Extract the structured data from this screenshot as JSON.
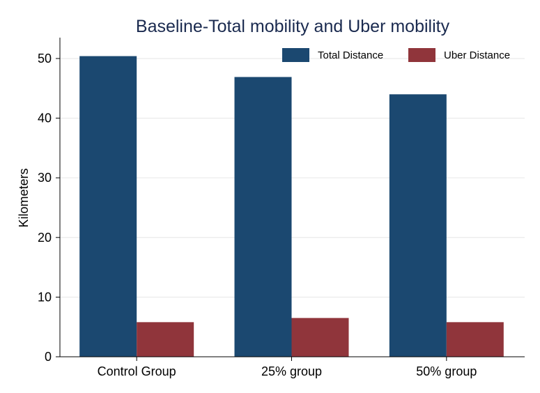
{
  "chart_data": {
    "type": "bar",
    "title": "Baseline-Total mobility and Uber mobility",
    "ylabel": "Kilometers",
    "xlabel": "",
    "categories": [
      "Control Group",
      "25% group",
      "50% group"
    ],
    "series": [
      {
        "name": "Total Distance",
        "values": [
          50.4,
          46.9,
          44.0
        ],
        "color": "#1b4870"
      },
      {
        "name": "Uber Distance",
        "values": [
          5.8,
          6.5,
          5.8
        ],
        "color": "#90353b"
      }
    ],
    "ylim": [
      0,
      53.5
    ],
    "yticks": [
      "0",
      "10",
      "20",
      "30",
      "40",
      "50"
    ],
    "grid": true,
    "legend_position": "top-right"
  }
}
